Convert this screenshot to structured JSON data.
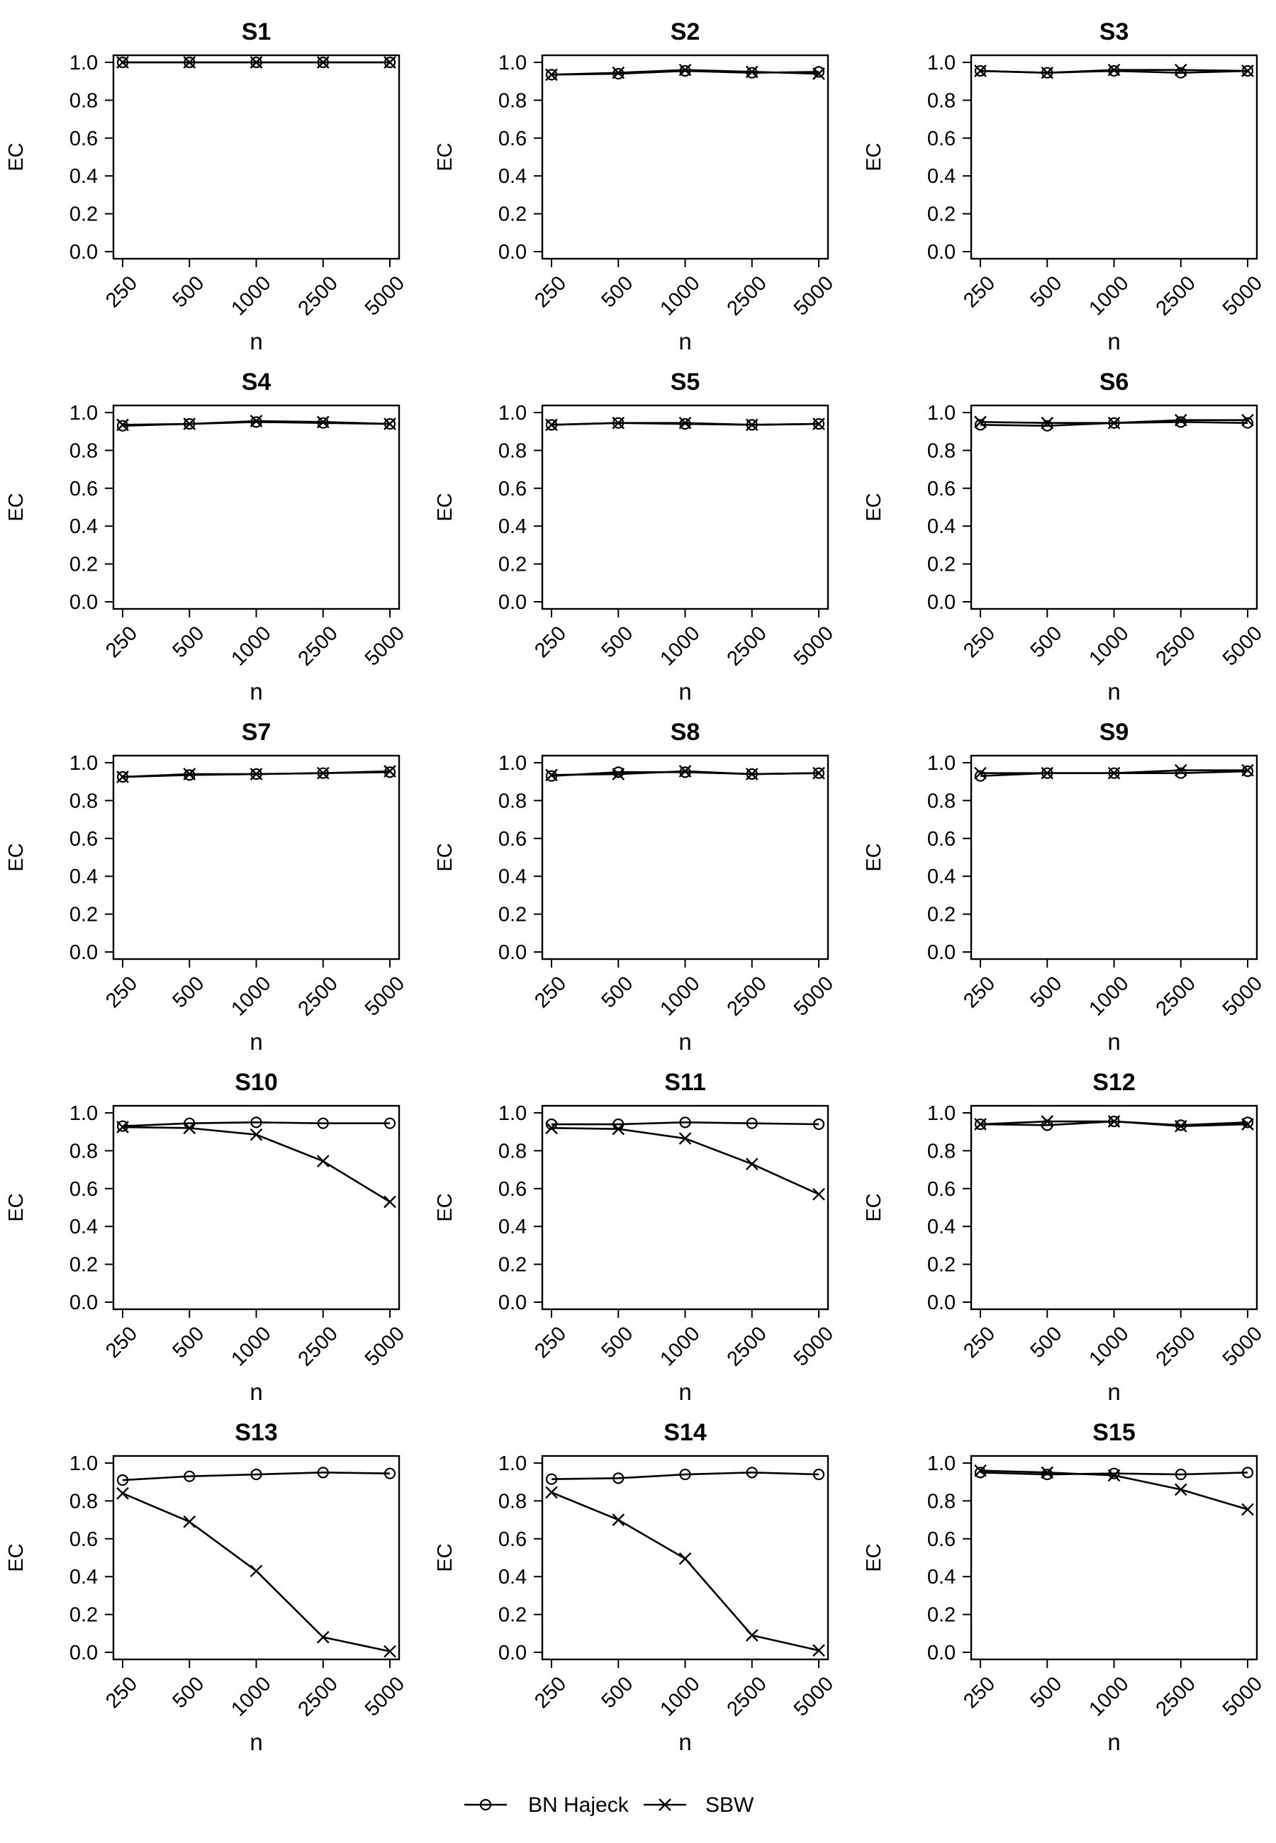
{
  "legend": {
    "position": "bottom-center",
    "items": [
      {
        "label": "BN Hajeck",
        "marker": "circle"
      },
      {
        "label": "SBW",
        "marker": "cross"
      }
    ]
  },
  "chart_data": [
    {
      "type": "line",
      "title": "S1",
      "xlabel": "n",
      "ylabel": "EC",
      "categories": [
        "250",
        "500",
        "1000",
        "2500",
        "5000"
      ],
      "yticks": [
        "0.0",
        "0.2",
        "0.4",
        "0.6",
        "0.8",
        "1.0"
      ],
      "ylim": [
        0,
        1
      ],
      "grid": false,
      "series": [
        {
          "name": "BN Hajeck",
          "values": [
            1.0,
            1.0,
            1.0,
            1.0,
            1.0
          ]
        },
        {
          "name": "SBW",
          "values": [
            1.0,
            1.0,
            1.0,
            1.0,
            1.0
          ]
        }
      ]
    },
    {
      "type": "line",
      "title": "S2",
      "xlabel": "n",
      "ylabel": "EC",
      "categories": [
        "250",
        "500",
        "1000",
        "2500",
        "5000"
      ],
      "yticks": [
        "0.0",
        "0.2",
        "0.4",
        "0.6",
        "0.8",
        "1.0"
      ],
      "ylim": [
        0,
        1
      ],
      "grid": false,
      "series": [
        {
          "name": "BN Hajeck",
          "values": [
            0.935,
            0.94,
            0.955,
            0.945,
            0.95
          ]
        },
        {
          "name": "SBW",
          "values": [
            0.935,
            0.945,
            0.96,
            0.95,
            0.94
          ]
        }
      ]
    },
    {
      "type": "line",
      "title": "S3",
      "xlabel": "n",
      "ylabel": "EC",
      "categories": [
        "250",
        "500",
        "1000",
        "2500",
        "5000"
      ],
      "yticks": [
        "0.0",
        "0.2",
        "0.4",
        "0.6",
        "0.8",
        "1.0"
      ],
      "ylim": [
        0,
        1
      ],
      "grid": false,
      "series": [
        {
          "name": "BN Hajeck",
          "values": [
            0.955,
            0.945,
            0.955,
            0.945,
            0.955
          ]
        },
        {
          "name": "SBW",
          "values": [
            0.955,
            0.945,
            0.96,
            0.96,
            0.955
          ]
        }
      ]
    },
    {
      "type": "line",
      "title": "S4",
      "xlabel": "n",
      "ylabel": "EC",
      "categories": [
        "250",
        "500",
        "1000",
        "2500",
        "5000"
      ],
      "yticks": [
        "0.0",
        "0.2",
        "0.4",
        "0.6",
        "0.8",
        "1.0"
      ],
      "ylim": [
        0,
        1
      ],
      "grid": false,
      "series": [
        {
          "name": "BN Hajeck",
          "values": [
            0.93,
            0.94,
            0.95,
            0.945,
            0.94
          ]
        },
        {
          "name": "SBW",
          "values": [
            0.935,
            0.94,
            0.955,
            0.95,
            0.94
          ]
        }
      ]
    },
    {
      "type": "line",
      "title": "S5",
      "xlabel": "n",
      "ylabel": "EC",
      "categories": [
        "250",
        "500",
        "1000",
        "2500",
        "5000"
      ],
      "yticks": [
        "0.0",
        "0.2",
        "0.4",
        "0.6",
        "0.8",
        "1.0"
      ],
      "ylim": [
        0,
        1
      ],
      "grid": false,
      "series": [
        {
          "name": "BN Hajeck",
          "values": [
            0.935,
            0.945,
            0.94,
            0.935,
            0.94
          ]
        },
        {
          "name": "SBW",
          "values": [
            0.935,
            0.945,
            0.945,
            0.935,
            0.94
          ]
        }
      ]
    },
    {
      "type": "line",
      "title": "S6",
      "xlabel": "n",
      "ylabel": "EC",
      "categories": [
        "250",
        "500",
        "1000",
        "2500",
        "5000"
      ],
      "yticks": [
        "0.0",
        "0.2",
        "0.4",
        "0.6",
        "0.8",
        "1.0"
      ],
      "ylim": [
        0,
        1
      ],
      "grid": false,
      "series": [
        {
          "name": "BN Hajeck",
          "values": [
            0.935,
            0.93,
            0.945,
            0.95,
            0.945
          ]
        },
        {
          "name": "SBW",
          "values": [
            0.95,
            0.945,
            0.945,
            0.96,
            0.96
          ]
        }
      ]
    },
    {
      "type": "line",
      "title": "S7",
      "xlabel": "n",
      "ylabel": "EC",
      "categories": [
        "250",
        "500",
        "1000",
        "2500",
        "5000"
      ],
      "yticks": [
        "0.0",
        "0.2",
        "0.4",
        "0.6",
        "0.8",
        "1.0"
      ],
      "ylim": [
        0,
        1
      ],
      "grid": false,
      "series": [
        {
          "name": "BN Hajeck",
          "values": [
            0.925,
            0.935,
            0.94,
            0.945,
            0.95
          ]
        },
        {
          "name": "SBW",
          "values": [
            0.925,
            0.94,
            0.94,
            0.945,
            0.955
          ]
        }
      ]
    },
    {
      "type": "line",
      "title": "S8",
      "xlabel": "n",
      "ylabel": "EC",
      "categories": [
        "250",
        "500",
        "1000",
        "2500",
        "5000"
      ],
      "yticks": [
        "0.0",
        "0.2",
        "0.4",
        "0.6",
        "0.8",
        "1.0"
      ],
      "ylim": [
        0,
        1
      ],
      "grid": false,
      "series": [
        {
          "name": "BN Hajeck",
          "values": [
            0.93,
            0.95,
            0.95,
            0.94,
            0.945
          ]
        },
        {
          "name": "SBW",
          "values": [
            0.935,
            0.94,
            0.955,
            0.94,
            0.945
          ]
        }
      ]
    },
    {
      "type": "line",
      "title": "S9",
      "xlabel": "n",
      "ylabel": "EC",
      "categories": [
        "250",
        "500",
        "1000",
        "2500",
        "5000"
      ],
      "yticks": [
        "0.0",
        "0.2",
        "0.4",
        "0.6",
        "0.8",
        "1.0"
      ],
      "ylim": [
        0,
        1
      ],
      "grid": false,
      "series": [
        {
          "name": "BN Hajeck",
          "values": [
            0.93,
            0.945,
            0.945,
            0.945,
            0.955
          ]
        },
        {
          "name": "SBW",
          "values": [
            0.945,
            0.945,
            0.945,
            0.96,
            0.96
          ]
        }
      ]
    },
    {
      "type": "line",
      "title": "S10",
      "xlabel": "n",
      "ylabel": "EC",
      "categories": [
        "250",
        "500",
        "1000",
        "2500",
        "5000"
      ],
      "yticks": [
        "0.0",
        "0.2",
        "0.4",
        "0.6",
        "0.8",
        "1.0"
      ],
      "ylim": [
        0,
        1
      ],
      "grid": false,
      "series": [
        {
          "name": "BN Hajeck",
          "values": [
            0.93,
            0.945,
            0.95,
            0.945,
            0.945
          ]
        },
        {
          "name": "SBW",
          "values": [
            0.925,
            0.92,
            0.885,
            0.745,
            0.53
          ]
        }
      ]
    },
    {
      "type": "line",
      "title": "S11",
      "xlabel": "n",
      "ylabel": "EC",
      "categories": [
        "250",
        "500",
        "1000",
        "2500",
        "5000"
      ],
      "yticks": [
        "0.0",
        "0.2",
        "0.4",
        "0.6",
        "0.8",
        "1.0"
      ],
      "ylim": [
        0,
        1
      ],
      "grid": false,
      "series": [
        {
          "name": "BN Hajeck",
          "values": [
            0.94,
            0.94,
            0.95,
            0.945,
            0.94
          ]
        },
        {
          "name": "SBW",
          "values": [
            0.92,
            0.915,
            0.865,
            0.73,
            0.57
          ]
        }
      ]
    },
    {
      "type": "line",
      "title": "S12",
      "xlabel": "n",
      "ylabel": "EC",
      "categories": [
        "250",
        "500",
        "1000",
        "2500",
        "5000"
      ],
      "yticks": [
        "0.0",
        "0.2",
        "0.4",
        "0.6",
        "0.8",
        "1.0"
      ],
      "ylim": [
        0,
        1
      ],
      "grid": false,
      "series": [
        {
          "name": "BN Hajeck",
          "values": [
            0.94,
            0.935,
            0.955,
            0.935,
            0.95
          ]
        },
        {
          "name": "SBW",
          "values": [
            0.94,
            0.955,
            0.955,
            0.93,
            0.94
          ]
        }
      ]
    },
    {
      "type": "line",
      "title": "S13",
      "xlabel": "n",
      "ylabel": "EC",
      "categories": [
        "250",
        "500",
        "1000",
        "2500",
        "5000"
      ],
      "yticks": [
        "0.0",
        "0.2",
        "0.4",
        "0.6",
        "0.8",
        "1.0"
      ],
      "ylim": [
        0,
        1
      ],
      "grid": false,
      "series": [
        {
          "name": "BN Hajeck",
          "values": [
            0.91,
            0.93,
            0.94,
            0.95,
            0.945
          ]
        },
        {
          "name": "SBW",
          "values": [
            0.84,
            0.69,
            0.43,
            0.08,
            0.005
          ]
        }
      ]
    },
    {
      "type": "line",
      "title": "S14",
      "xlabel": "n",
      "ylabel": "EC",
      "categories": [
        "250",
        "500",
        "1000",
        "2500",
        "5000"
      ],
      "yticks": [
        "0.0",
        "0.2",
        "0.4",
        "0.6",
        "0.8",
        "1.0"
      ],
      "ylim": [
        0,
        1
      ],
      "grid": false,
      "series": [
        {
          "name": "BN Hajeck",
          "values": [
            0.915,
            0.92,
            0.94,
            0.95,
            0.94
          ]
        },
        {
          "name": "SBW",
          "values": [
            0.845,
            0.7,
            0.495,
            0.09,
            0.01
          ]
        }
      ]
    },
    {
      "type": "line",
      "title": "S15",
      "xlabel": "n",
      "ylabel": "EC",
      "categories": [
        "250",
        "500",
        "1000",
        "2500",
        "5000"
      ],
      "yticks": [
        "0.0",
        "0.2",
        "0.4",
        "0.6",
        "0.8",
        "1.0"
      ],
      "ylim": [
        0,
        1
      ],
      "grid": false,
      "series": [
        {
          "name": "BN Hajeck",
          "values": [
            0.95,
            0.94,
            0.945,
            0.94,
            0.95
          ]
        },
        {
          "name": "SBW",
          "values": [
            0.96,
            0.95,
            0.935,
            0.86,
            0.755
          ]
        }
      ]
    }
  ]
}
